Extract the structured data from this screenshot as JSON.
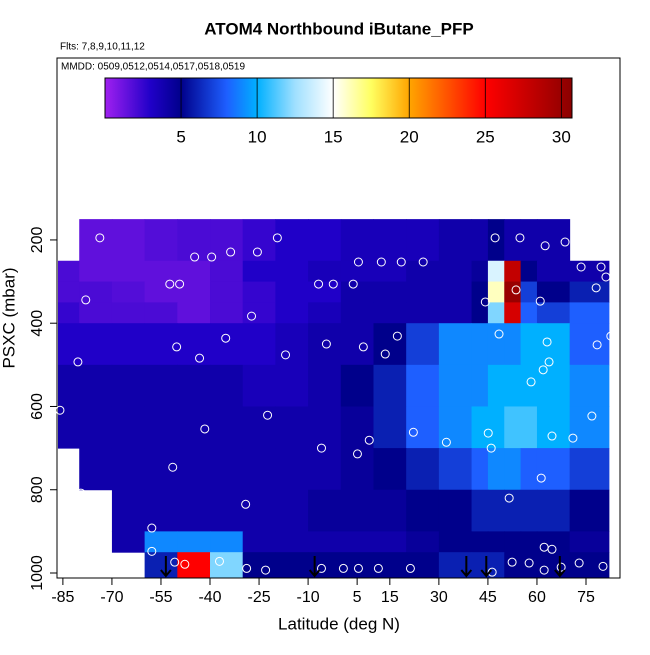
{
  "chart_data": {
    "type": "heatmap",
    "title": "ATOM4 Northbound iButane_PFP",
    "subtitle": "Flts: 7,8,9,10,11,12",
    "annotation": "MMDD: 0509,0512,0514,0517,0518,0519",
    "xlabel": "Latitude (deg N)",
    "ylabel": "PSXC (mbar)",
    "xlim": [
      -86.8,
      85.4
    ],
    "ylim": [
      1012,
      -237
    ],
    "xticks": [
      -85,
      -70,
      -55,
      -40,
      -25,
      -10,
      5,
      15,
      30,
      45,
      60,
      75
    ],
    "yticks": [
      200,
      400,
      600,
      800,
      1000
    ],
    "x_edges": [
      -86.5,
      -80,
      -70,
      -60,
      -50,
      -40,
      -30,
      -20,
      -10,
      0,
      10,
      20,
      30,
      40,
      45,
      50,
      55,
      60,
      70,
      82
    ],
    "y_edges": [
      150,
      250,
      300,
      350,
      400,
      500,
      600,
      700,
      800,
      900,
      950,
      1012
    ],
    "z": [
      [
        null,
        1.5,
        1.5,
        1.8,
        2,
        2,
        2.5,
        3,
        3,
        3.5,
        3.5,
        3.5,
        4,
        4,
        5,
        4,
        4,
        4,
        null
      ],
      [
        2,
        1.5,
        1.5,
        1.5,
        1.5,
        2,
        3,
        3,
        3.5,
        3.5,
        3.5,
        4,
        4,
        4.5,
        14,
        28,
        5,
        4,
        4
      ],
      [
        2,
        2,
        1.8,
        1.5,
        1.5,
        2,
        2.5,
        3,
        3,
        4,
        4,
        4,
        4,
        5,
        16,
        30,
        7,
        5,
        6
      ],
      [
        2.5,
        2,
        2,
        2,
        1.5,
        2,
        2.5,
        3,
        3.5,
        4,
        4,
        4,
        4,
        5,
        12,
        27,
        8,
        7,
        8
      ],
      [
        3,
        3,
        3,
        3,
        3,
        3,
        3,
        3.5,
        4,
        4,
        5,
        7,
        9,
        9,
        9,
        9,
        10,
        10,
        8
      ],
      [
        4,
        4,
        4,
        4,
        4,
        4,
        3.5,
        3.5,
        4,
        5,
        6,
        8,
        9,
        9,
        10,
        10,
        10,
        10,
        9
      ],
      [
        4,
        4,
        4,
        4,
        4,
        4,
        4,
        4,
        4,
        4.5,
        6,
        8,
        9,
        10,
        10,
        11,
        11,
        10,
        9
      ],
      [
        null,
        4,
        4,
        4,
        4,
        4,
        4,
        4,
        4,
        4.5,
        5,
        6,
        7,
        8,
        9,
        9,
        8,
        8,
        7
      ],
      [
        null,
        null,
        4,
        4,
        4,
        4,
        4,
        4,
        4.5,
        4.5,
        4.5,
        5,
        5,
        6,
        6,
        6,
        6,
        6,
        5
      ],
      [
        null,
        null,
        4,
        9,
        9,
        9,
        4,
        4,
        4,
        4,
        4,
        4.5,
        5,
        5,
        5,
        5,
        5,
        5,
        4.5
      ],
      [
        null,
        null,
        null,
        6,
        25,
        12,
        5,
        5,
        5,
        5,
        5,
        5,
        6,
        6,
        6,
        5,
        5,
        5,
        5
      ]
    ],
    "colorbar": {
      "lim": [
        0,
        30.7
      ],
      "ticks": [
        5,
        10,
        15,
        20,
        25,
        30
      ],
      "stops": [
        [
          0,
          "#a020f0"
        ],
        [
          3,
          "#2000c8"
        ],
        [
          5,
          "#00008b"
        ],
        [
          8,
          "#1e5fff"
        ],
        [
          10,
          "#00b0ff"
        ],
        [
          12.5,
          "#a0e0ff"
        ],
        [
          15,
          "#ffffff"
        ],
        [
          17.5,
          "#ffff60"
        ],
        [
          20,
          "#ffa500"
        ],
        [
          25,
          "#ff0000"
        ],
        [
          30.7,
          "#8b0000"
        ]
      ]
    },
    "samples": {
      "lat": [
        -85.3,
        -81.9,
        -73.7,
        -78,
        -44.7,
        -39.5,
        -33.7,
        -25.5,
        -19.4,
        -52.3,
        -49.3,
        -6.8,
        -2.3,
        3.8,
        5.4,
        12.4,
        18.5,
        25.2,
        -27.3,
        -50.2,
        -43.2,
        -35.2,
        -16.9,
        -4.4,
        6.9,
        13.6,
        17.3,
        -80.4,
        47.2,
        54.8,
        62.5,
        68.6,
        74.1,
        73.5,
        79.6,
        81.1,
        78.1,
        44.2,
        53.6,
        61,
        48.4,
        63.1,
        63.7,
        61.9,
        58.2,
        78.4,
        82.6,
        -85.9,
        -22.4,
        -41.6,
        -5.9,
        5.1,
        8.7,
        22.2,
        32.3,
        45.1,
        46,
        64.6,
        71,
        76.8,
        61.3,
        51.5,
        -51.4,
        -29.1,
        -79.5,
        62.2,
        64.6,
        -57.8,
        -57.8,
        -50.8,
        -47.7,
        -37.1,
        -28.8,
        -23,
        -5.9,
        0.8,
        5.4,
        11.5,
        21.3,
        46.3,
        52.4,
        57.6,
        62.2,
        67.4,
        72.9,
        80.2
      ],
      "pressure": [
        205,
        236,
        195,
        344,
        241,
        241,
        229,
        229,
        195,
        306,
        306,
        306,
        306,
        306,
        253,
        253,
        253,
        253,
        383,
        457,
        484,
        436,
        476,
        450,
        457,
        474,
        431,
        493,
        195,
        195,
        214,
        205,
        210,
        265,
        265,
        289,
        315,
        349,
        320,
        347,
        426,
        445,
        493,
        512,
        541,
        452,
        431,
        609,
        621,
        654,
        700,
        714,
        681,
        662,
        686,
        664,
        700,
        671,
        676,
        623,
        772,
        820,
        746,
        835,
        808,
        938,
        943,
        892,
        948,
        974,
        979,
        972,
        989,
        993,
        989,
        989,
        989,
        989,
        989,
        998,
        974,
        976,
        993,
        986,
        976,
        984
      ],
      "color": "#ffffff"
    },
    "markers_lat": [
      -53.5,
      -8,
      38.4,
      44.5,
      67
    ],
    "marker_color": "#000000"
  }
}
